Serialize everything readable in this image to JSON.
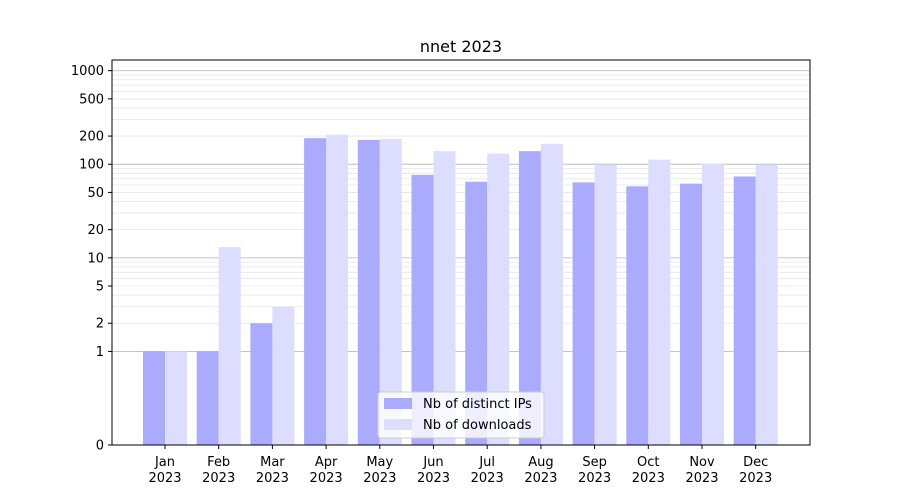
{
  "chart_data": {
    "type": "bar",
    "title": "nnet 2023",
    "scale": "symlog",
    "categories": [
      "Jan\n2023",
      "Feb\n2023",
      "Mar\n2023",
      "Apr\n2023",
      "May\n2023",
      "Jun\n2023",
      "Jul\n2023",
      "Aug\n2023",
      "Sep\n2023",
      "Oct\n2023",
      "Nov\n2023",
      "Dec\n2023"
    ],
    "series": [
      {
        "name": "Nb of distinct IPs",
        "color": "#aaaaff",
        "values": [
          1,
          1,
          2,
          190,
          182,
          77,
          65,
          138,
          64,
          58,
          62,
          74
        ]
      },
      {
        "name": "Nb of downloads",
        "color": "#ddddff",
        "values": [
          1,
          13,
          3,
          207,
          186,
          138,
          130,
          165,
          98,
          112,
          101,
          98
        ]
      }
    ],
    "yticks": [
      0,
      1,
      2,
      5,
      10,
      20,
      50,
      100,
      200,
      500,
      1000
    ],
    "ylim": [
      0,
      1300
    ],
    "grid": true,
    "legend_position": "bottom-center"
  }
}
